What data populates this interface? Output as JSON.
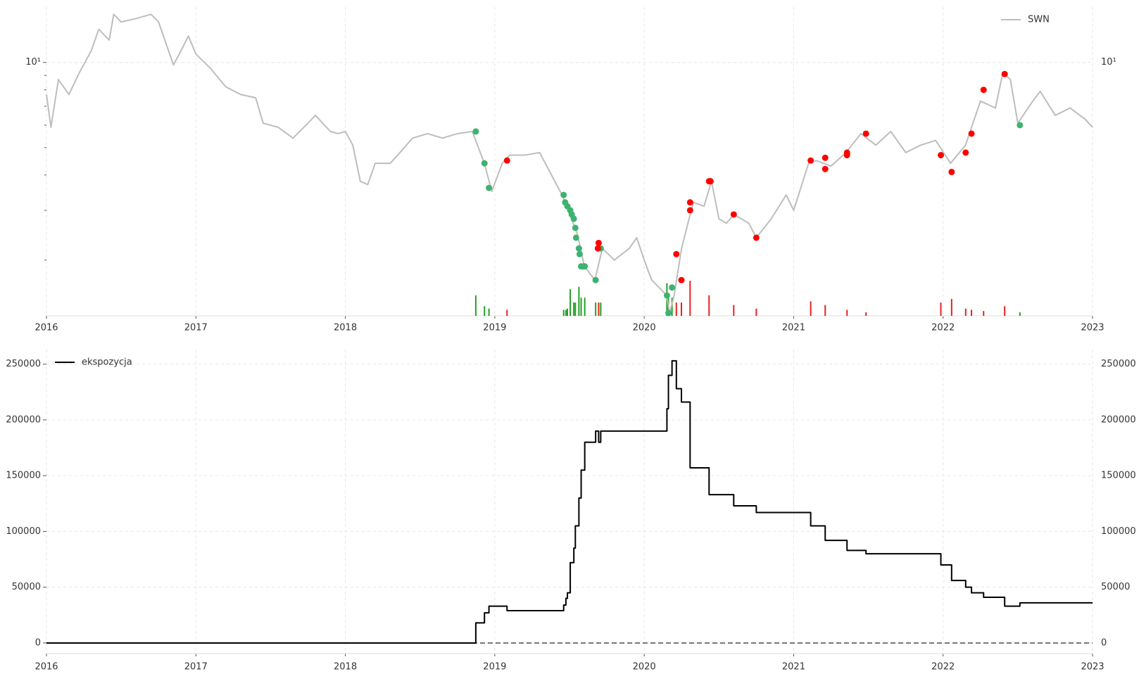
{
  "chart_data": [
    {
      "type": "line",
      "yscale": "log",
      "legend": "upper right",
      "grid": true,
      "xlim": [
        2016,
        2023
      ],
      "xticks": [
        2016,
        2017,
        2018,
        2019,
        2020,
        2021,
        2022,
        2023
      ],
      "ylim": [
        1.27,
        15.7
      ],
      "yticks": [
        {
          "value": 10,
          "label": "10¹"
        }
      ],
      "minor_yticks": [
        2,
        3,
        4,
        5,
        6,
        7,
        8,
        9
      ],
      "y2lim": [
        0,
        255000
      ],
      "series": [
        {
          "name": "SWN",
          "color": "#bdbdbd",
          "x": [
            2016.0,
            2016.03,
            2016.08,
            2016.15,
            2016.22,
            2016.3,
            2016.35,
            2016.42,
            2016.45,
            2016.5,
            2016.6,
            2016.7,
            2016.75,
            2016.85,
            2016.9,
            2016.95,
            2017.0,
            2017.1,
            2017.2,
            2017.3,
            2017.4,
            2017.45,
            2017.55,
            2017.65,
            2017.75,
            2017.8,
            2017.9,
            2017.95,
            2018.0,
            2018.05,
            2018.1,
            2018.15,
            2018.2,
            2018.3,
            2018.35,
            2018.45,
            2018.55,
            2018.65,
            2018.75,
            2018.85,
            2018.93,
            2018.98,
            2019.05,
            2019.1,
            2019.2,
            2019.3,
            2019.45,
            2019.55,
            2019.6,
            2019.67,
            2019.72,
            2019.8,
            2019.9,
            2019.95,
            2020.0,
            2020.05,
            2020.1,
            2020.15,
            2020.17,
            2020.2,
            2020.25,
            2020.3,
            2020.33,
            2020.4,
            2020.45,
            2020.5,
            2020.55,
            2020.6,
            2020.7,
            2020.75,
            2020.85,
            2020.95,
            2021.0,
            2021.1,
            2021.15,
            2021.25,
            2021.35,
            2021.45,
            2021.55,
            2021.65,
            2021.75,
            2021.85,
            2021.95,
            2022.05,
            2022.15,
            2022.25,
            2022.35,
            2022.4,
            2022.45,
            2022.5,
            2022.6,
            2022.65,
            2022.75,
            2022.85,
            2022.95,
            2023.0
          ],
          "values": [
            7.7,
            5.9,
            8.7,
            7.7,
            9.2,
            11.0,
            13.1,
            12.0,
            14.8,
            13.9,
            14.3,
            14.8,
            13.9,
            9.8,
            11.0,
            12.4,
            10.7,
            9.5,
            8.2,
            7.7,
            7.5,
            6.1,
            5.9,
            5.4,
            6.1,
            6.5,
            5.7,
            5.6,
            5.7,
            5.1,
            3.8,
            3.7,
            4.4,
            4.4,
            4.7,
            5.4,
            5.6,
            5.4,
            5.6,
            5.7,
            4.4,
            3.5,
            4.4,
            4.7,
            4.7,
            4.8,
            3.4,
            2.5,
            1.9,
            1.7,
            2.2,
            2.0,
            2.2,
            2.4,
            2.0,
            1.7,
            1.6,
            1.5,
            1.3,
            1.5,
            2.2,
            2.8,
            3.2,
            3.1,
            3.8,
            2.8,
            2.7,
            2.9,
            2.7,
            2.4,
            2.8,
            3.4,
            3.0,
            4.4,
            4.5,
            4.3,
            4.8,
            5.6,
            5.1,
            5.7,
            4.8,
            5.1,
            5.3,
            4.4,
            5.1,
            7.3,
            6.9,
            9.2,
            8.7,
            6.1,
            7.3,
            7.9,
            6.5,
            6.9,
            6.3,
            5.9
          ]
        }
      ],
      "markers": [
        {
          "color": "#3cb371",
          "x": [
            2018.873,
            2018.931,
            2018.961,
            2019.461,
            2019.471,
            2019.486,
            2019.505,
            2019.515,
            2019.529,
            2019.539,
            2019.544,
            2019.563,
            2019.568,
            2019.578,
            2019.593,
            2019.602,
            2019.675,
            2019.709,
            2020.152,
            2020.162,
            2020.186,
            2022.514
          ],
          "values": [
            5.7,
            4.4,
            3.6,
            3.4,
            3.2,
            3.1,
            3.0,
            2.9,
            2.8,
            2.6,
            2.4,
            2.2,
            2.1,
            1.9,
            1.9,
            1.9,
            1.7,
            2.2,
            1.5,
            1.3,
            1.6,
            6.0
          ]
        },
        {
          "color": "#ff0000",
          "x": [
            2019.082,
            2019.695,
            2019.69,
            2020.215,
            2020.249,
            2020.307,
            2020.307,
            2020.434,
            2020.444,
            2020.599,
            2020.75,
            2021.114,
            2021.211,
            2021.211,
            2021.357,
            2021.357,
            2021.484,
            2021.985,
            2022.057,
            2022.151,
            2022.19,
            2022.271,
            2022.412
          ],
          "values": [
            4.5,
            2.3,
            2.2,
            2.1,
            1.7,
            3.2,
            3.0,
            3.8,
            3.8,
            2.9,
            2.4,
            4.5,
            4.6,
            4.2,
            4.8,
            4.7,
            5.6,
            4.7,
            4.1,
            4.8,
            5.6,
            8.0,
            9.1
          ]
        }
      ],
      "bars": [
        {
          "color": "#22a022",
          "axis": "y2",
          "x": [
            2018.873,
            2018.931,
            2018.961,
            2019.461,
            2019.476,
            2019.486,
            2019.505,
            2019.529,
            2019.539,
            2019.563,
            2019.578,
            2019.602,
            2019.675,
            2019.709,
            2020.152,
            2020.162,
            2020.186,
            2022.514
          ],
          "values": [
            17000,
            8000,
            6000,
            5000,
            5000,
            6000,
            22000,
            11000,
            11000,
            24000,
            15000,
            15000,
            11000,
            11000,
            27000,
            18000,
            15000,
            3000
          ]
        },
        {
          "color": "#e82020",
          "axis": "y2",
          "x": [
            2019.082,
            2019.695,
            2020.215,
            2020.249,
            2020.307,
            2020.434,
            2020.599,
            2020.75,
            2021.114,
            2021.211,
            2021.357,
            2021.484,
            2021.985,
            2022.057,
            2022.151,
            2022.19,
            2022.271,
            2022.412
          ],
          "values": [
            5000,
            11000,
            11000,
            11000,
            29000,
            17000,
            9000,
            6000,
            12000,
            9000,
            5000,
            3000,
            11000,
            14000,
            6000,
            5000,
            4000,
            8000
          ]
        }
      ]
    },
    {
      "type": "line",
      "drawstyle": "steps-post",
      "legend": "upper left",
      "grid": true,
      "xlim": [
        2016,
        2023
      ],
      "xticks": [
        2016,
        2017,
        2018,
        2019,
        2020,
        2021,
        2022,
        2023
      ],
      "ylim": [
        -9500,
        263000
      ],
      "yticks": [
        0,
        50000,
        100000,
        150000,
        200000,
        250000
      ],
      "hline": 0,
      "series": [
        {
          "name": "ekspozycja",
          "color": "#000000",
          "x": [
            2016,
            2018.873,
            2018.931,
            2018.961,
            2019.082,
            2019.461,
            2019.476,
            2019.486,
            2019.505,
            2019.529,
            2019.539,
            2019.563,
            2019.578,
            2019.602,
            2019.675,
            2019.695,
            2019.709,
            2020.152,
            2020.162,
            2020.186,
            2020.215,
            2020.249,
            2020.307,
            2020.434,
            2020.599,
            2020.75,
            2021.114,
            2021.211,
            2021.357,
            2021.484,
            2021.985,
            2022.057,
            2022.151,
            2022.19,
            2022.271,
            2022.412,
            2022.514,
            2023
          ],
          "values": [
            0,
            18000,
            27000,
            33000,
            29000,
            34000,
            40000,
            45000,
            72000,
            85000,
            105000,
            130000,
            155000,
            180000,
            190000,
            180000,
            190000,
            210000,
            240000,
            253000,
            228000,
            216000,
            157000,
            133000,
            123000,
            117000,
            105000,
            92000,
            83000,
            80000,
            70000,
            56000,
            50000,
            45000,
            41000,
            33000,
            36000,
            36000
          ]
        }
      ]
    }
  ]
}
